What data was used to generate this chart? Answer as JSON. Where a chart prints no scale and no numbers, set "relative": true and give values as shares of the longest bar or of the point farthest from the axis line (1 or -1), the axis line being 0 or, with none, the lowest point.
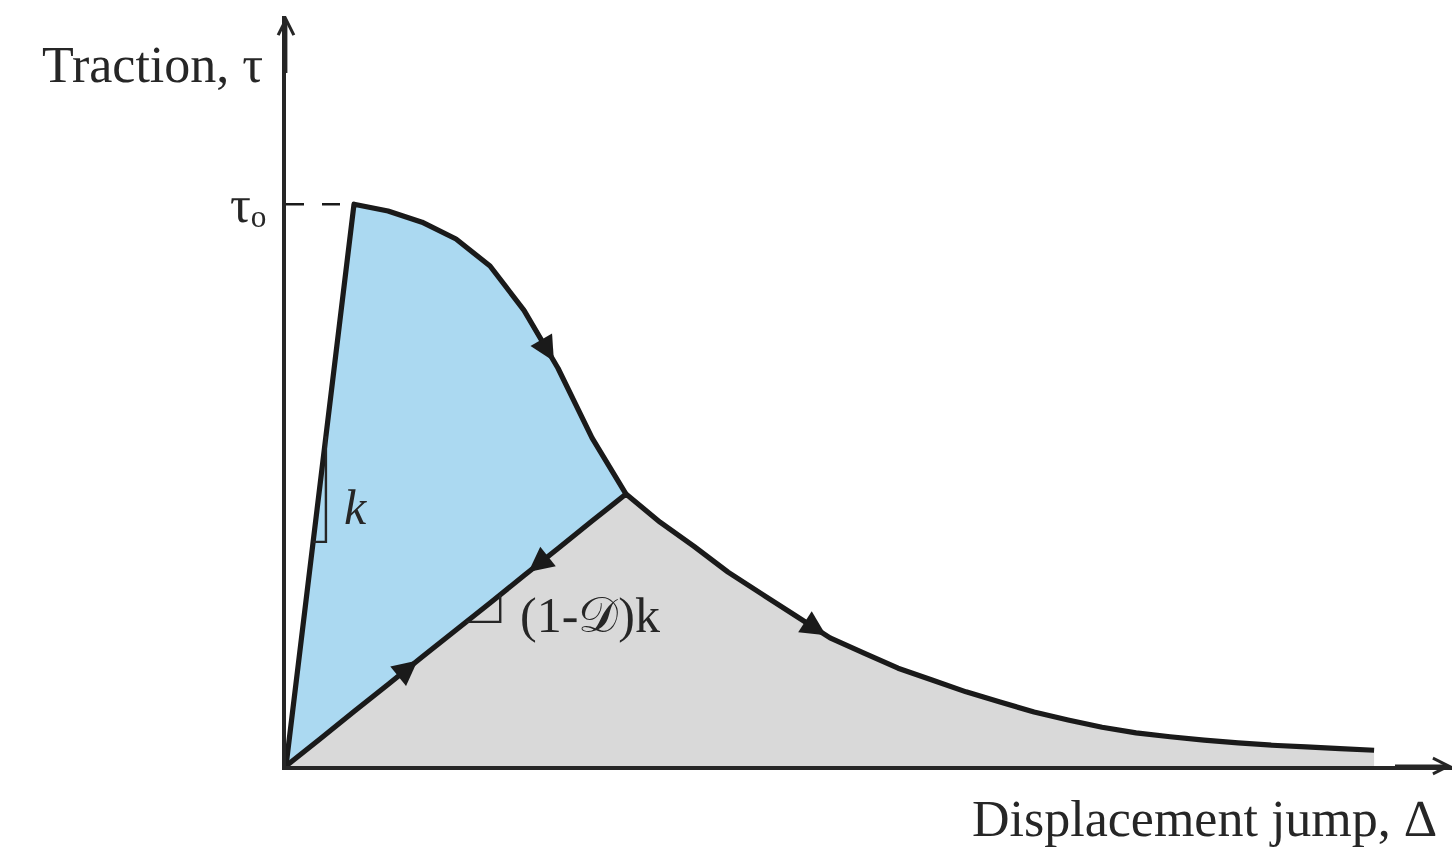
{
  "chart_data": {
    "type": "area",
    "relative": true,
    "xlabel": "Displacement jump, Δ",
    "ylabel": "Traction, τ",
    "annotations": [
      "k",
      "(1-𝒟)k"
    ],
    "ref_lines": [
      {
        "axis": "y",
        "value": 1,
        "label": "τₒ",
        "line_style": "dashed",
        "color": "#1a1a1a"
      }
    ],
    "categories": [
      null,
      null,
      null,
      null,
      null,
      null,
      null,
      null,
      null,
      null,
      null,
      null,
      null,
      null,
      null,
      null,
      null,
      null,
      null,
      null,
      null,
      null,
      null,
      null,
      null,
      null,
      null,
      null,
      null,
      null,
      null,
      null,
      null
    ],
    "series": [
      {
        "color": "#abd9f1",
        "values": [
          0,
          0.5,
          1,
          0.988,
          0.968,
          0.938,
          0.89,
          0.811,
          0.708,
          0.584,
          0.484,
          null,
          null,
          null,
          null,
          null,
          null,
          null,
          null,
          null,
          null,
          null,
          null,
          null,
          null,
          null,
          null,
          null,
          null,
          null,
          null,
          null,
          null
        ]
      },
      {
        "color": "#d9d9d9",
        "values": [
          0,
          0.048,
          0.097,
          0.145,
          0.194,
          0.242,
          0.29,
          0.339,
          0.387,
          0.436,
          0.484,
          0.434,
          0.391,
          0.345,
          0.306,
          0.267,
          0.228,
          0.201,
          0.174,
          0.153,
          0.132,
          0.114,
          0.096,
          0.082,
          0.069,
          0.059,
          0.052,
          0.046,
          0.041,
          0.037,
          0.034,
          0.031,
          0.028
        ]
      }
    ]
  }
}
